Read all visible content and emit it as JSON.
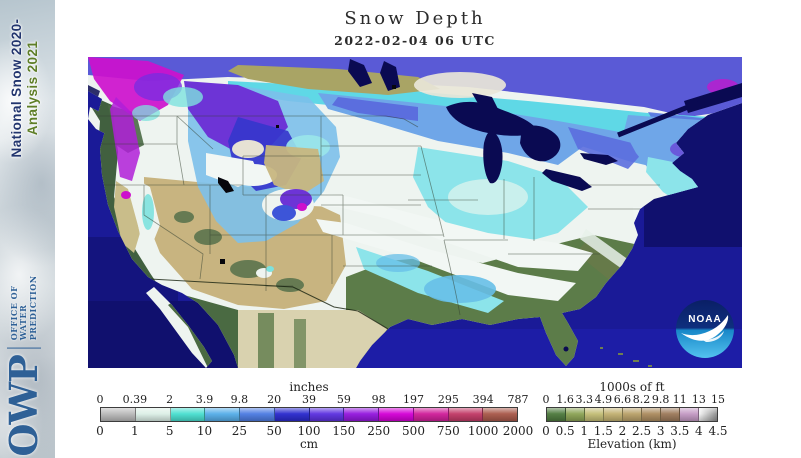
{
  "sidebar": {
    "program_line1": "National Snow 2020-",
    "program_line2": "Analysis 2021",
    "org_abbrev": "OWP",
    "org_name_lines": [
      "OFFICE OF",
      "WATER",
      "PREDICTION"
    ]
  },
  "header": {
    "title": "Snow Depth",
    "timestamp": "2022-02-04 06 UTC"
  },
  "map": {
    "noaa_logo_text": "NOAA",
    "colors": {
      "ocean": "#1a1a97",
      "ocean_dark": "#10106e",
      "ocean_bright": "#1d1da6",
      "lakes": "#0a0a52",
      "snow_base": "#eef4f0",
      "canada_blue": "#5a5ad6",
      "canada_cyan": "#5fd8e6",
      "light_blue": "#6fa6e8",
      "medium_blue": "#5b6ede",
      "cyan": "#8ce4ea",
      "deep_blue": "#3636cc",
      "purple": "#6d34d6",
      "magenta": "#cd10cd",
      "land_green": "#5c7c49",
      "coast_green": "#41603f",
      "land_tan": "#c8b480",
      "prairie_khaki": "#a9a465",
      "mexico_beige": "#d9d2af"
    }
  },
  "legend_depth": {
    "title_top": "inches",
    "title_bottom": "cm",
    "top_labels": [
      "0",
      "0.39",
      "2",
      "3.9",
      "9.8",
      "20",
      "39",
      "59",
      "98",
      "197",
      "295",
      "394",
      "787"
    ],
    "bottom_labels": [
      "0",
      "1",
      "5",
      "10",
      "25",
      "50",
      "100",
      "150",
      "250",
      "500",
      "750",
      "1000",
      "2000"
    ],
    "colors": [
      "#b9b9b9",
      "#dcefe7",
      "#49dfd0",
      "#56aee9",
      "#4d7ce2",
      "#2a2ace",
      "#5c31e0",
      "#9417de",
      "#d400d6",
      "#d01f9a",
      "#c23a67",
      "#a9594a"
    ]
  },
  "legend_elevation": {
    "title_top": "1000s of ft",
    "title_bottom": "Elevation (km)",
    "top_labels": [
      "0",
      "1.6",
      "3.3",
      "4.9",
      "6.6",
      "8.2",
      "9.8",
      "11",
      "13",
      "15"
    ],
    "bottom_labels": [
      "0",
      "0.5",
      "1",
      "1.5",
      "2",
      "2.5",
      "3",
      "3.5",
      "4",
      "4.5"
    ],
    "colors": [
      "#4e7b3e",
      "#8da455",
      "#c3bd76",
      "#c2b171",
      "#b9a169",
      "#ac8c5f",
      "#9d7a5b",
      "#c49ac4",
      "#ececec"
    ],
    "last_segment_gradient": {
      "from": "#f5f5f5",
      "to": "#8e8e8e"
    }
  }
}
